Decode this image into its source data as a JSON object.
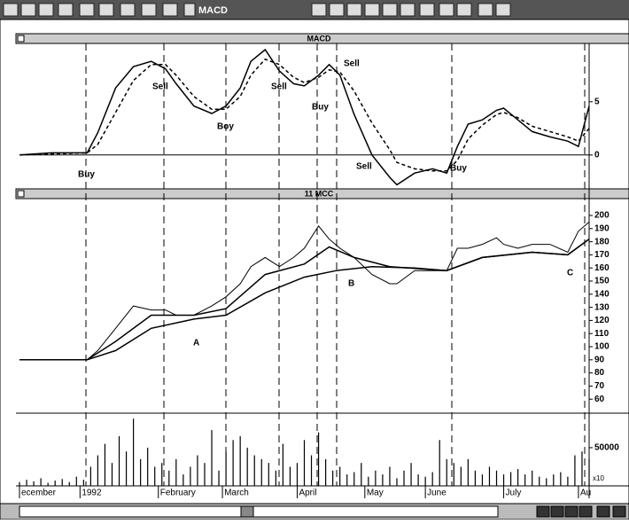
{
  "toolbar": {
    "title": "MACD"
  },
  "chart_data": [
    {
      "type": "line",
      "title": "MACD",
      "xlim": [
        0,
        160
      ],
      "ylim": [
        -3.1,
        10.4
      ],
      "yticks": [
        0,
        5
      ],
      "series": [
        {
          "color": "#000000",
          "line_style": "solid",
          "x": [
            0,
            9,
            19,
            22,
            27,
            32,
            37,
            41,
            44,
            49,
            54,
            58,
            62,
            65,
            69,
            73,
            77,
            80,
            84,
            87,
            90,
            94,
            99,
            104,
            106,
            111,
            116,
            120,
            123,
            126,
            130,
            134,
            136,
            140,
            144,
            149,
            154,
            157,
            160
          ],
          "values": [
            0,
            0.2,
            0.2,
            2.1,
            6.3,
            8.3,
            8.8,
            8.1,
            6.7,
            4.6,
            3.9,
            4.6,
            6.3,
            8.8,
            9.9,
            7.9,
            6.7,
            6.5,
            7.5,
            8.5,
            7.5,
            3.8,
            0,
            -2.1,
            -2.8,
            -1.7,
            -1.3,
            -1.7,
            0.8,
            2.9,
            3.3,
            4.2,
            4.4,
            3.3,
            2.2,
            1.7,
            1.3,
            0.8,
            4.6
          ]
        },
        {
          "color": "#000000",
          "line_style": "dashed",
          "x": [
            0,
            9,
            19,
            22,
            27,
            32,
            37,
            41,
            44,
            49,
            54,
            58,
            62,
            65,
            69,
            73,
            77,
            80,
            84,
            87,
            90,
            94,
            99,
            104,
            106,
            111,
            116,
            120,
            123,
            126,
            130,
            134,
            136,
            140,
            144,
            149,
            154,
            157,
            160
          ],
          "values": [
            0,
            0.1,
            0.2,
            1,
            4,
            7,
            8.5,
            8.5,
            7.5,
            5.5,
            4.3,
            4.3,
            5.5,
            7.5,
            9,
            8.5,
            7.3,
            6.8,
            7.3,
            8,
            7.8,
            6,
            3,
            0.5,
            -0.7,
            -1.3,
            -1.5,
            -1.5,
            -0.5,
            1.5,
            2.8,
            3.8,
            4,
            3.5,
            2.7,
            2.2,
            1.7,
            1.3,
            2.5
          ]
        }
      ],
      "annotations": [
        "Buy",
        "Sell",
        "Boy",
        "Sell",
        "Buy",
        "Sell",
        "Sell",
        "Buy"
      ]
    },
    {
      "type": "line",
      "title": "11 MCC",
      "xlim": [
        0,
        160
      ],
      "ylim": [
        50,
        211.5
      ],
      "yticks": [
        200,
        190,
        180,
        170,
        160,
        150,
        140,
        130,
        120,
        110,
        100,
        90,
        80,
        70,
        60
      ],
      "series": [
        {
          "color": "#000000",
          "line_style": "thin",
          "x": [
            0,
            19,
            22,
            27,
            32,
            37,
            41,
            44,
            49,
            54,
            58,
            62,
            65,
            69,
            73,
            77,
            80,
            84,
            87,
            90,
            94,
            99,
            104,
            106,
            111,
            116,
            120,
            123,
            126,
            130,
            134,
            136,
            140,
            144,
            149,
            154,
            157,
            160
          ],
          "values": [
            90,
            90,
            97,
            114,
            131,
            128,
            128,
            124,
            124,
            131,
            138,
            148,
            161,
            168,
            161,
            168,
            175,
            192,
            182,
            175,
            168,
            155,
            148,
            148,
            158,
            158,
            158,
            175,
            175,
            178,
            183,
            178,
            175,
            178,
            178,
            172,
            188,
            195
          ]
        },
        {
          "color": "#000000",
          "line_style": "solid",
          "x": [
            0,
            19,
            27,
            37,
            49,
            58,
            69,
            80,
            87,
            94,
            104,
            120,
            130,
            144,
            154,
            160
          ],
          "values": [
            90,
            90,
            104,
            124,
            124,
            129,
            155,
            163,
            176,
            168,
            161,
            158,
            168,
            172,
            170,
            182
          ]
        },
        {
          "color": "#000000",
          "line_style": "solid",
          "x": [
            0,
            19,
            27,
            37,
            49,
            58,
            69,
            80,
            89,
            99,
            111,
            120,
            130,
            144,
            154,
            160
          ],
          "values": [
            90,
            90,
            97,
            114,
            121,
            124,
            141,
            153,
            158,
            161,
            160,
            158,
            168,
            172,
            170,
            182
          ]
        }
      ],
      "annotations": [
        "A",
        "B",
        "C"
      ]
    },
    {
      "type": "bar",
      "xlim": [
        0,
        160
      ],
      "ylim": [
        0,
        94000
      ],
      "yticks": [
        50000
      ],
      "y_unit_label": "x10",
      "x": [
        0,
        2,
        4,
        6,
        8,
        10,
        12,
        14,
        16,
        18,
        20,
        22,
        24,
        26,
        28,
        30,
        32,
        34,
        36,
        38,
        40,
        42,
        44,
        46,
        48,
        50,
        52,
        54,
        56,
        58,
        60,
        62,
        64,
        66,
        68,
        70,
        72,
        74,
        76,
        78,
        80,
        82,
        84,
        86,
        88,
        90,
        92,
        94,
        96,
        98,
        100,
        102,
        104,
        106,
        108,
        110,
        112,
        114,
        116,
        118,
        120,
        122,
        124,
        126,
        128,
        130,
        132,
        134,
        136,
        138,
        140,
        142,
        144,
        146,
        148,
        150,
        152,
        154,
        156,
        158,
        160
      ],
      "values": [
        5000,
        8000,
        6000,
        10000,
        4000,
        7000,
        9000,
        5000,
        12000,
        8000,
        25000,
        40000,
        55000,
        30000,
        65000,
        45000,
        88000,
        35000,
        50000,
        25000,
        30000,
        20000,
        35000,
        15000,
        25000,
        40000,
        30000,
        73000,
        20000,
        45000,
        60000,
        65000,
        50000,
        40000,
        35000,
        30000,
        20000,
        55000,
        25000,
        30000,
        60000,
        40000,
        70000,
        35000,
        20000,
        25000,
        15000,
        18000,
        30000,
        12000,
        20000,
        15000,
        25000,
        10000,
        20000,
        30000,
        15000,
        12000,
        18000,
        60000,
        35000,
        30000,
        25000,
        35000,
        20000,
        15000,
        25000,
        20000,
        15000,
        18000,
        22000,
        15000,
        20000,
        12000,
        10000,
        15000,
        18000,
        12000,
        40000,
        45000,
        35000
      ],
      "color": "#000000",
      "xticks": [
        {
          "value": 0,
          "label": "ecember"
        },
        {
          "value": 17,
          "label": "1992"
        },
        {
          "value": 39,
          "label": "February"
        },
        {
          "value": 57,
          "label": "March"
        },
        {
          "value": 78,
          "label": "April"
        },
        {
          "value": 97,
          "label": "May"
        },
        {
          "value": 114,
          "label": "June"
        },
        {
          "value": 136,
          "label": "July"
        },
        {
          "value": 157,
          "label": "Au"
        }
      ]
    }
  ]
}
